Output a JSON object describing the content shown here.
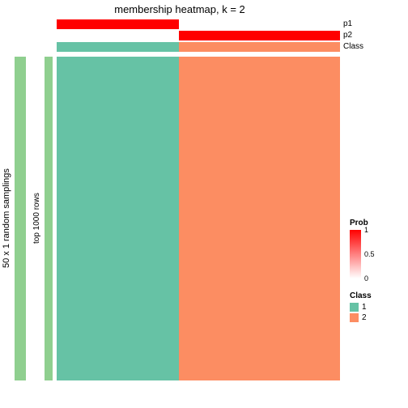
{
  "title": "membership heatmap, k = 2",
  "y_axis_outer_label": "50 x 1 random samplings",
  "y_axis_inner_label": "top 1000 rows",
  "annotation_tracks": [
    {
      "name": "p1",
      "segments": [
        {
          "width_pct": 43,
          "color": "#ff0000"
        },
        {
          "width_pct": 57,
          "color": "#ffffff"
        }
      ]
    },
    {
      "name": "p2",
      "segments": [
        {
          "width_pct": 43,
          "color": "#ffffff"
        },
        {
          "width_pct": 57,
          "color": "#ff0000"
        }
      ]
    },
    {
      "name": "Class",
      "segments": [
        {
          "width_pct": 43,
          "color": "#66c2a5"
        },
        {
          "width_pct": 57,
          "color": "#fc8d62"
        }
      ]
    }
  ],
  "heatmap_columns": [
    {
      "width_pct": 43,
      "color": "#66c2a5"
    },
    {
      "width_pct": 57,
      "color": "#fc8d62"
    }
  ],
  "side_bar_outer_color": "#8fcf8f",
  "side_bar_inner_color": "#8fcf8f",
  "background_color": "#ffffff",
  "legend_prob": {
    "title": "Prob",
    "gradient_top": "#ff0000",
    "gradient_bottom": "#ffffff",
    "ticks": [
      {
        "label": "1",
        "pos_pct": 0
      },
      {
        "label": "0.5",
        "pos_pct": 50
      },
      {
        "label": "0",
        "pos_pct": 100
      }
    ]
  },
  "legend_class": {
    "title": "Class",
    "items": [
      {
        "label": "1",
        "color": "#66c2a5"
      },
      {
        "label": "2",
        "color": "#fc8d62"
      }
    ]
  },
  "font_family": "Arial, sans-serif",
  "title_fontsize": 13,
  "label_fontsize": 10
}
